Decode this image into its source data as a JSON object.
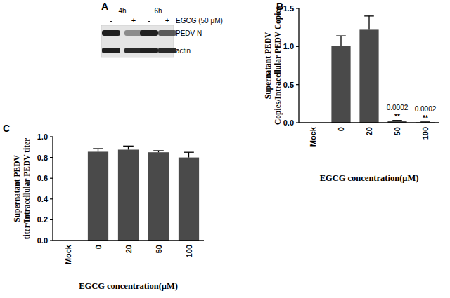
{
  "chart_data": [
    {
      "type": "bar",
      "title": "B",
      "categories": [
        "Mock",
        "0",
        "20",
        "50",
        "100"
      ],
      "values": [
        0,
        1.01,
        1.22,
        0.02,
        0.005
      ],
      "errors": [
        0,
        0.13,
        0.18,
        0.01,
        0.005
      ],
      "color": "#4a4a4a",
      "x_label": "EGCG concentration(μM)",
      "y_label": [
        "Supernatant PEDV",
        "Copies/Intracellular PEDV Copies"
      ],
      "ylim": [
        0,
        1.5
      ],
      "yticks": [
        {
          "value": 0,
          "label": "0.0"
        },
        {
          "value": 0.5,
          "label": "0.5"
        },
        {
          "value": 1,
          "label": "1.0"
        },
        {
          "value": 1.5,
          "label": "1.5"
        }
      ],
      "annotations": [
        {
          "category": "50",
          "text": "**"
        },
        {
          "category": "50",
          "text": "0.0002"
        },
        {
          "category": "100",
          "text": "**"
        },
        {
          "category": "100",
          "text": "0.0002"
        }
      ],
      "grid": false
    },
    {
      "type": "bar",
      "title": "C",
      "categories": [
        "Mock",
        "0",
        "20",
        "50",
        "100"
      ],
      "values": [
        0,
        0.855,
        0.875,
        0.85,
        0.8
      ],
      "errors": [
        0,
        0.03,
        0.035,
        0.015,
        0.05
      ],
      "color": "#4a4a4a",
      "x_label": "EGCG concentration(μM)",
      "y_label": [
        "Supernatant PEDV",
        "titer/Intracellular PEDV titer"
      ],
      "ylim": [
        0,
        1
      ],
      "yticks": [
        {
          "value": 0,
          "label": "0.0"
        },
        {
          "value": 0.2,
          "label": "0.2"
        },
        {
          "value": 0.4,
          "label": "0.4"
        },
        {
          "value": 0.6,
          "label": "0.6"
        },
        {
          "value": 0.8,
          "label": "0.8"
        },
        {
          "value": 1,
          "label": "1.0"
        }
      ],
      "grid": false
    }
  ],
  "blot": {
    "title": "A",
    "treatment": "EGCG (50 μM)",
    "times": [
      "4h",
      "6h"
    ],
    "lanes": [
      "-",
      "+",
      "-",
      "+"
    ],
    "rows": [
      {
        "label": "PEDV-N",
        "bands": [
          1,
          0.45,
          1,
          0.7
        ]
      },
      {
        "label": "actin",
        "bands": [
          1,
          0.95,
          1,
          0.95
        ]
      }
    ]
  }
}
